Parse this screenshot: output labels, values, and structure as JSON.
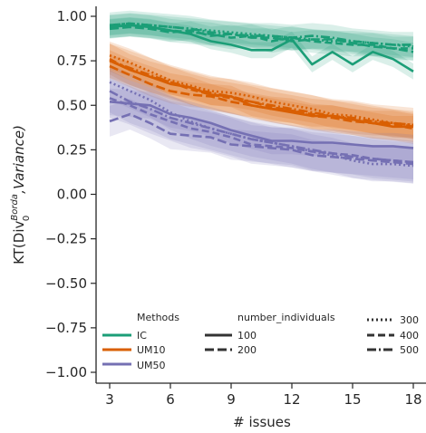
{
  "chart_data": {
    "type": "line",
    "title": "",
    "xlabel": "# issues",
    "ylabel": {
      "base": "KT(Div",
      "sup": "Borda",
      "sub": "0",
      "tail": ",Variance)"
    },
    "xlim": [
      2.4,
      18.6
    ],
    "ylim": [
      -1.05,
      1.05
    ],
    "xticks": [
      3,
      6,
      9,
      12,
      15,
      18
    ],
    "yticks": [
      1.0,
      0.75,
      0.5,
      0.25,
      0.0,
      -0.25,
      -0.5,
      -0.75,
      -1.0
    ],
    "xtick_labels": [
      "3",
      "6",
      "9",
      "12",
      "15",
      "18"
    ],
    "ytick_labels": [
      "1.00",
      "0.75",
      "0.50",
      "0.25",
      "0.00",
      "−0.25",
      "−0.50",
      "−0.75",
      "−1.00"
    ],
    "x": [
      3,
      4,
      5,
      6,
      7,
      8,
      9,
      10,
      11,
      12,
      13,
      14,
      15,
      16,
      17,
      18
    ],
    "grid": false,
    "legend": {
      "placement": "bottom",
      "methods_title": "Methods",
      "methods": [
        "IC",
        "UM10",
        "UM50"
      ],
      "individuals_title": "number_individuals",
      "individuals": [
        "100",
        "200",
        "300",
        "400",
        "500"
      ]
    },
    "colors": {
      "IC": "#1b9e77",
      "UM10": "#d95f02",
      "UM50": "#7570b3"
    },
    "series": [
      {
        "method": "IC",
        "individuals": "100",
        "values": [
          0.94,
          0.95,
          0.94,
          0.92,
          0.9,
          0.86,
          0.84,
          0.81,
          0.81,
          0.87,
          0.73,
          0.8,
          0.73,
          0.8,
          0.76,
          0.69
        ]
      },
      {
        "method": "IC",
        "individuals": "200",
        "values": [
          0.93,
          0.94,
          0.93,
          0.91,
          0.92,
          0.89,
          0.9,
          0.88,
          0.88,
          0.86,
          0.87,
          0.87,
          0.85,
          0.83,
          0.82,
          0.8
        ]
      },
      {
        "method": "IC",
        "individuals": "300",
        "values": [
          0.95,
          0.96,
          0.95,
          0.94,
          0.93,
          0.92,
          0.91,
          0.9,
          0.89,
          0.88,
          0.87,
          0.86,
          0.86,
          0.85,
          0.84,
          0.83
        ]
      },
      {
        "method": "IC",
        "individuals": "400",
        "values": [
          0.94,
          0.95,
          0.94,
          0.92,
          0.91,
          0.9,
          0.88,
          0.89,
          0.86,
          0.88,
          0.86,
          0.85,
          0.84,
          0.84,
          0.82,
          0.82
        ]
      },
      {
        "method": "IC",
        "individuals": "500",
        "values": [
          0.95,
          0.96,
          0.95,
          0.94,
          0.93,
          0.91,
          0.9,
          0.89,
          0.89,
          0.88,
          0.89,
          0.88,
          0.86,
          0.85,
          0.84,
          0.84
        ]
      },
      {
        "method": "UM10",
        "individuals": "100",
        "values": [
          0.75,
          0.7,
          0.66,
          0.62,
          0.6,
          0.56,
          0.55,
          0.5,
          0.48,
          0.46,
          0.44,
          0.44,
          0.42,
          0.4,
          0.38,
          0.38
        ]
      },
      {
        "method": "UM10",
        "individuals": "200",
        "values": [
          0.72,
          0.67,
          0.62,
          0.58,
          0.56,
          0.55,
          0.52,
          0.5,
          0.48,
          0.47,
          0.44,
          0.43,
          0.41,
          0.4,
          0.4,
          0.38
        ]
      },
      {
        "method": "UM10",
        "individuals": "300",
        "values": [
          0.78,
          0.74,
          0.69,
          0.64,
          0.61,
          0.58,
          0.57,
          0.55,
          0.52,
          0.5,
          0.48,
          0.45,
          0.44,
          0.42,
          0.4,
          0.39
        ]
      },
      {
        "method": "UM10",
        "individuals": "400",
        "values": [
          0.76,
          0.7,
          0.66,
          0.63,
          0.59,
          0.56,
          0.54,
          0.52,
          0.49,
          0.47,
          0.45,
          0.44,
          0.42,
          0.4,
          0.39,
          0.37
        ]
      },
      {
        "method": "UM10",
        "individuals": "500",
        "values": [
          0.75,
          0.71,
          0.67,
          0.63,
          0.6,
          0.57,
          0.55,
          0.52,
          0.5,
          0.48,
          0.46,
          0.44,
          0.43,
          0.41,
          0.4,
          0.39
        ]
      },
      {
        "method": "UM50",
        "individuals": "100",
        "values": [
          0.52,
          0.51,
          0.5,
          0.45,
          0.43,
          0.4,
          0.36,
          0.33,
          0.3,
          0.3,
          0.29,
          0.29,
          0.28,
          0.27,
          0.27,
          0.26
        ]
      },
      {
        "method": "UM50",
        "individuals": "200",
        "values": [
          0.41,
          0.45,
          0.4,
          0.34,
          0.33,
          0.32,
          0.28,
          0.27,
          0.26,
          0.25,
          0.22,
          0.21,
          0.2,
          0.19,
          0.18,
          0.17
        ]
      },
      {
        "method": "UM50",
        "individuals": "300",
        "values": [
          0.63,
          0.58,
          0.53,
          0.46,
          0.41,
          0.37,
          0.34,
          0.31,
          0.29,
          0.27,
          0.24,
          0.22,
          0.19,
          0.17,
          0.17,
          0.16
        ]
      },
      {
        "method": "UM50",
        "individuals": "400",
        "values": [
          0.54,
          0.5,
          0.45,
          0.41,
          0.37,
          0.35,
          0.32,
          0.28,
          0.27,
          0.26,
          0.24,
          0.23,
          0.22,
          0.2,
          0.19,
          0.18
        ]
      },
      {
        "method": "UM50",
        "individuals": "500",
        "values": [
          0.58,
          0.52,
          0.48,
          0.43,
          0.4,
          0.37,
          0.34,
          0.31,
          0.29,
          0.27,
          0.25,
          0.23,
          0.21,
          0.2,
          0.19,
          0.18
        ]
      }
    ]
  }
}
